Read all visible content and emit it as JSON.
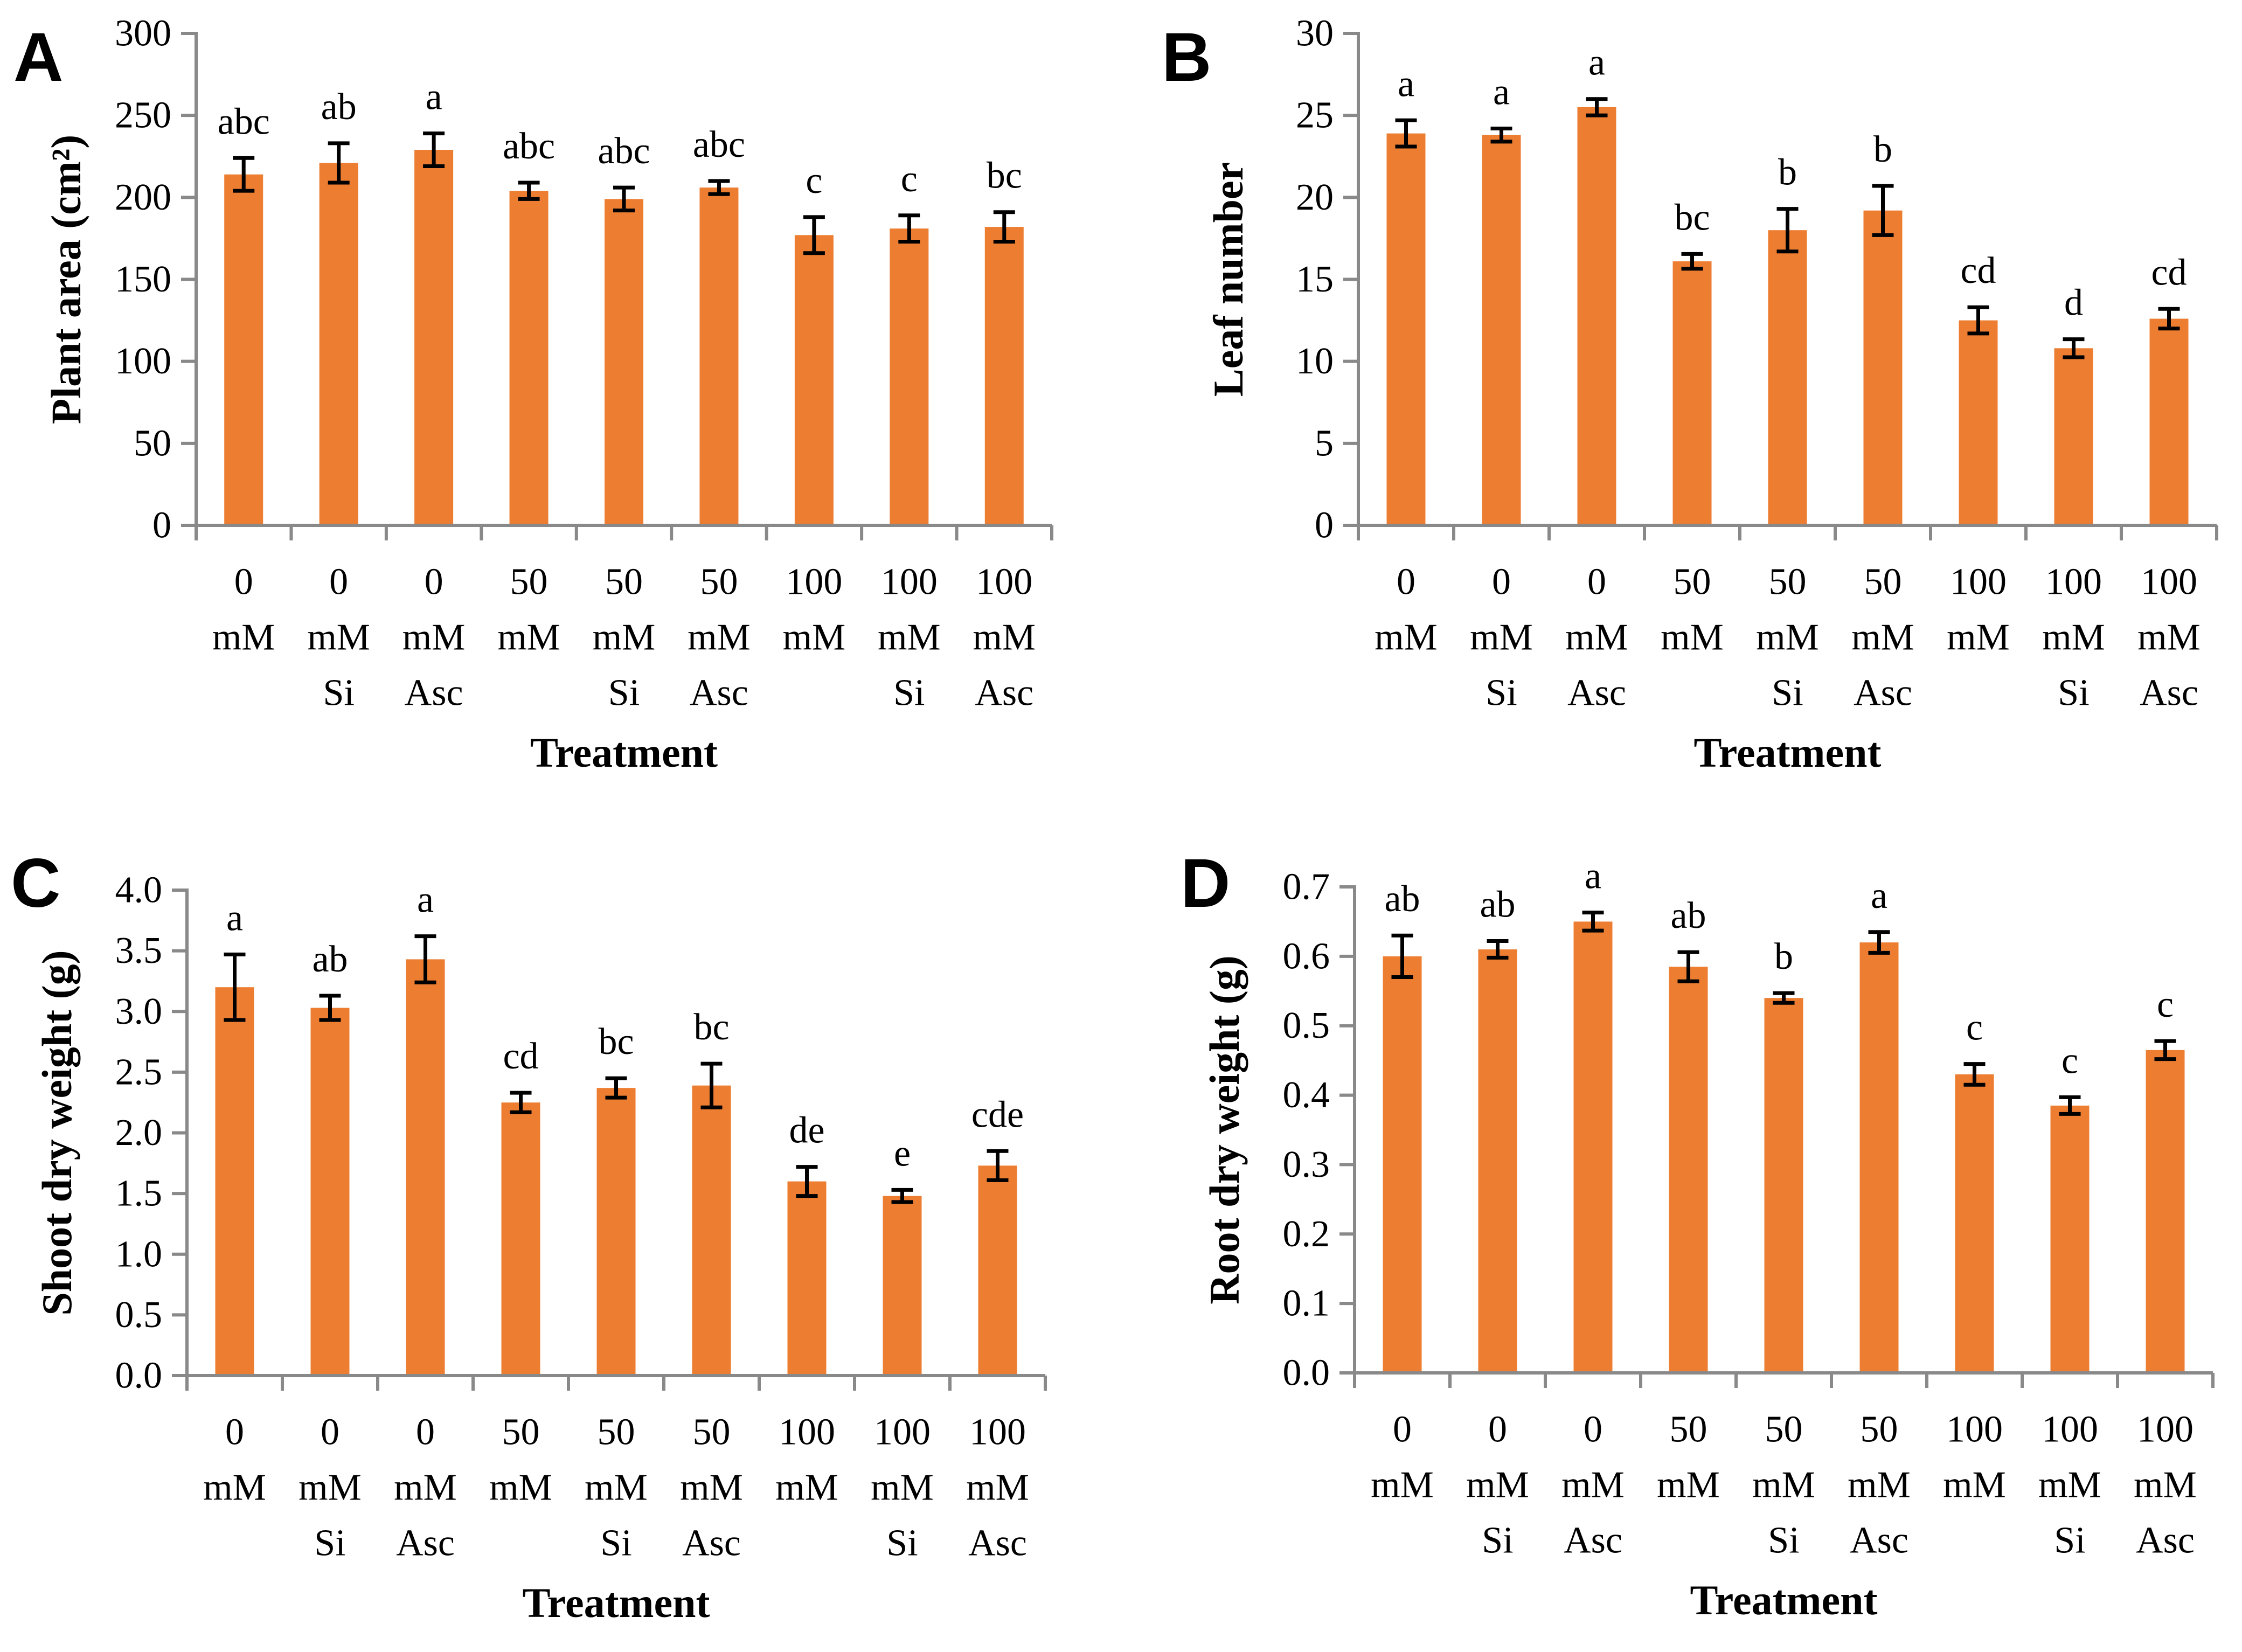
{
  "figure": {
    "bar_color": "#ED7D31",
    "axis_color": "#898989",
    "error_color": "#000000",
    "text_color": "#000000"
  },
  "chart_data": [
    {
      "panel": "A",
      "type": "bar",
      "ylabel": "Plant area (cm²)",
      "xlabel": "Treatment",
      "ylim": [
        0,
        300
      ],
      "ytick_step": 50,
      "ytick_decimals": 0,
      "grid": false,
      "categories": [
        [
          "0",
          "mM"
        ],
        [
          "0",
          "mM",
          "Si"
        ],
        [
          "0",
          "mM",
          "Asc"
        ],
        [
          "50",
          "mM"
        ],
        [
          "50",
          "mM",
          "Si"
        ],
        [
          "50",
          "mM",
          "Asc"
        ],
        [
          "100",
          "mM"
        ],
        [
          "100",
          "mM",
          "Si"
        ],
        [
          "100",
          "mM",
          "Asc"
        ]
      ],
      "values": [
        214,
        221,
        229,
        204,
        199,
        206,
        177,
        181,
        182
      ],
      "errors": [
        10,
        12,
        10,
        5,
        7,
        4,
        11,
        8,
        9
      ],
      "sig_letters": [
        "abc",
        "ab",
        "a",
        "abc",
        "abc",
        "abc",
        "c",
        "c",
        "bc"
      ]
    },
    {
      "panel": "B",
      "type": "bar",
      "ylabel": "Leaf number",
      "xlabel": "Treatment",
      "ylim": [
        0,
        30
      ],
      "ytick_step": 5,
      "ytick_decimals": 0,
      "grid": false,
      "categories": [
        [
          "0",
          "mM"
        ],
        [
          "0",
          "mM",
          "Si"
        ],
        [
          "0",
          "mM",
          "Asc"
        ],
        [
          "50",
          "mM"
        ],
        [
          "50",
          "mM",
          "Si"
        ],
        [
          "50",
          "mM",
          "Asc"
        ],
        [
          "100",
          "mM"
        ],
        [
          "100",
          "mM",
          "Si"
        ],
        [
          "100",
          "mM",
          "Asc"
        ]
      ],
      "values": [
        23.9,
        23.8,
        25.5,
        16.1,
        18.0,
        19.2,
        12.5,
        10.8,
        12.6
      ],
      "errors": [
        0.8,
        0.4,
        0.5,
        0.45,
        1.3,
        1.5,
        0.8,
        0.55,
        0.6
      ],
      "sig_letters": [
        "a",
        "a",
        "a",
        "bc",
        "b",
        "b",
        "cd",
        "d",
        "cd"
      ]
    },
    {
      "panel": "C",
      "type": "bar",
      "ylabel": "Shoot dry weight (g)",
      "xlabel": "Treatment",
      "ylim": [
        0,
        4.0
      ],
      "ytick_step": 0.5,
      "ytick_decimals": 1,
      "grid": false,
      "categories": [
        [
          "0",
          "mM"
        ],
        [
          "0",
          "mM",
          "Si"
        ],
        [
          "0",
          "mM",
          "Asc"
        ],
        [
          "50",
          "mM"
        ],
        [
          "50",
          "mM",
          "Si"
        ],
        [
          "50",
          "mM",
          "Asc"
        ],
        [
          "100",
          "mM"
        ],
        [
          "100",
          "mM",
          "Si"
        ],
        [
          "100",
          "mM",
          "Asc"
        ]
      ],
      "values": [
        3.2,
        3.03,
        3.43,
        2.25,
        2.37,
        2.39,
        1.6,
        1.48,
        1.73
      ],
      "errors": [
        0.27,
        0.1,
        0.19,
        0.08,
        0.08,
        0.18,
        0.12,
        0.05,
        0.12
      ],
      "sig_letters": [
        "a",
        "ab",
        "a",
        "cd",
        "bc",
        "bc",
        "de",
        "e",
        "cde"
      ]
    },
    {
      "panel": "D",
      "type": "bar",
      "ylabel": "Root dry weight (g)",
      "xlabel": "Treatment",
      "ylim": [
        0,
        0.7
      ],
      "ytick_step": 0.1,
      "ytick_decimals": 1,
      "grid": false,
      "categories": [
        [
          "0",
          "mM"
        ],
        [
          "0",
          "mM",
          "Si"
        ],
        [
          "0",
          "mM",
          "Asc"
        ],
        [
          "50",
          "mM"
        ],
        [
          "50",
          "mM",
          "Si"
        ],
        [
          "50",
          "mM",
          "Asc"
        ],
        [
          "100",
          "mM"
        ],
        [
          "100",
          "mM",
          "Si"
        ],
        [
          "100",
          "mM",
          "Asc"
        ]
      ],
      "values": [
        0.6,
        0.61,
        0.65,
        0.585,
        0.54,
        0.62,
        0.43,
        0.385,
        0.465
      ],
      "errors": [
        0.03,
        0.012,
        0.013,
        0.021,
        0.007,
        0.015,
        0.015,
        0.012,
        0.013
      ],
      "sig_letters": [
        "ab",
        "ab",
        "a",
        "ab",
        "b",
        "a",
        "c",
        "c",
        "c"
      ]
    }
  ]
}
